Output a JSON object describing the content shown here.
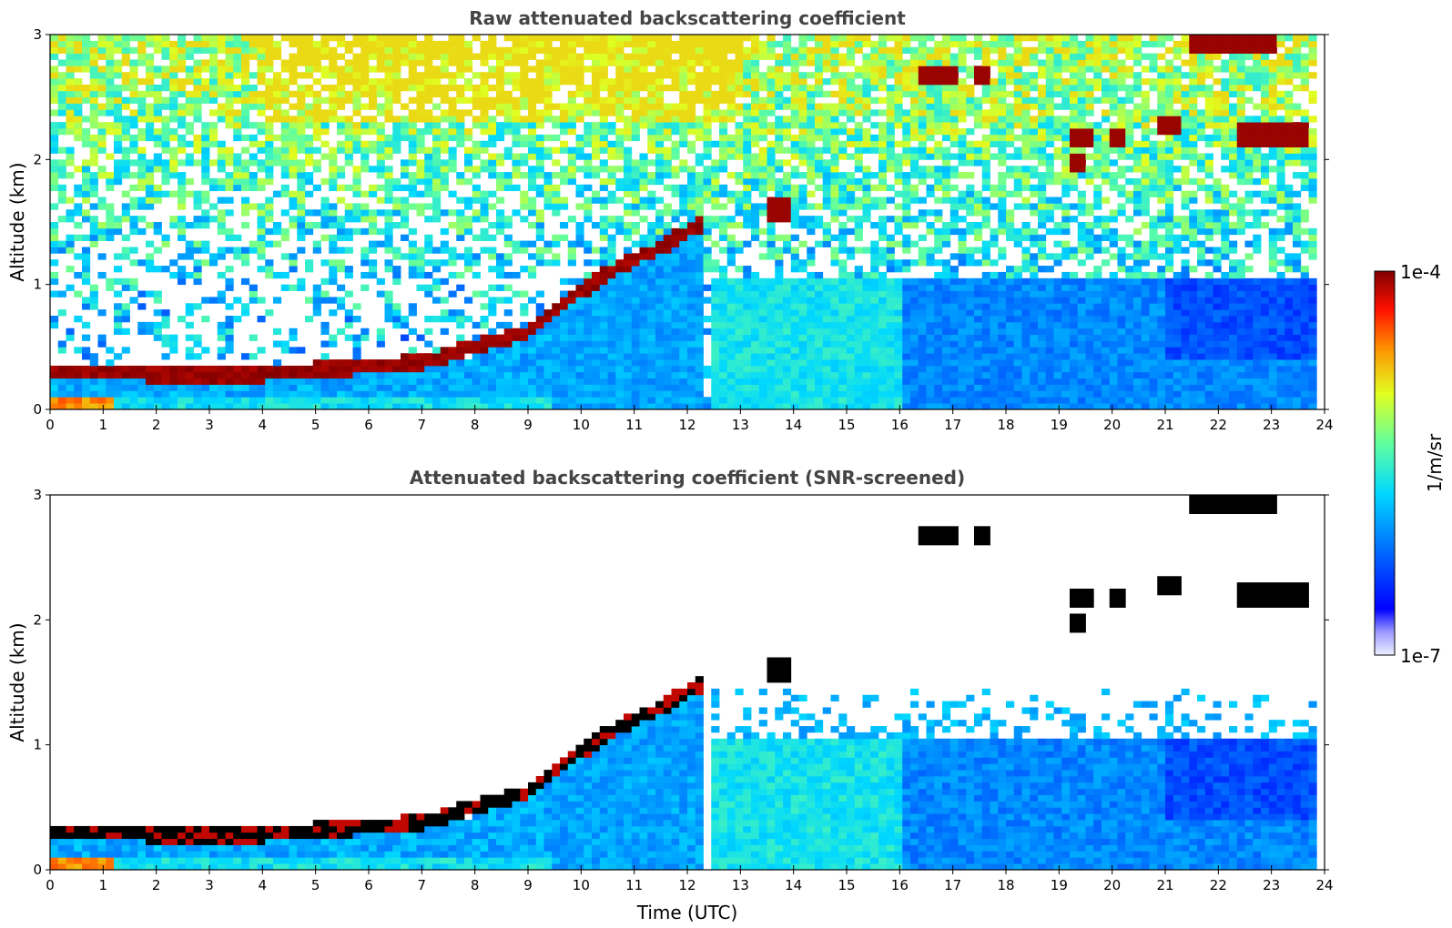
{
  "chart_data": [
    {
      "type": "heatmap",
      "title": "Raw attenuated backscattering coefficient",
      "xlabel": "",
      "ylabel": "Altitude (km)",
      "xlim": [
        0,
        24
      ],
      "ylim": [
        0,
        3
      ],
      "xticks": [
        "0",
        "1",
        "2",
        "3",
        "4",
        "5",
        "6",
        "7",
        "8",
        "9",
        "10",
        "11",
        "12",
        "13",
        "14",
        "15",
        "16",
        "17",
        "18",
        "19",
        "20",
        "21",
        "22",
        "23",
        "24"
      ],
      "yticks": [
        "0",
        "1",
        "2",
        "3"
      ],
      "screened": false
    },
    {
      "type": "heatmap",
      "title": "Attenuated backscattering coefficient (SNR-screened)",
      "xlabel": "Time (UTC)",
      "ylabel": "Altitude (km)",
      "xlim": [
        0,
        24
      ],
      "ylim": [
        0,
        3
      ],
      "xticks": [
        "0",
        "1",
        "2",
        "3",
        "4",
        "5",
        "6",
        "7",
        "8",
        "9",
        "10",
        "11",
        "12",
        "13",
        "14",
        "15",
        "16",
        "17",
        "18",
        "19",
        "20",
        "21",
        "22",
        "23",
        "24"
      ],
      "yticks": [
        "0",
        "1",
        "2",
        "3"
      ],
      "screened": true
    }
  ],
  "colorbar": {
    "label": "1/m/sr",
    "max_label": "1e-4",
    "min_label": "1e-7",
    "scale": "log",
    "colormap": "jet"
  },
  "features": {
    "boundary_layer_top_km": [
      [
        0,
        0.3
      ],
      [
        1,
        0.3
      ],
      [
        2,
        0.28
      ],
      [
        3,
        0.27
      ],
      [
        4,
        0.28
      ],
      [
        5,
        0.32
      ],
      [
        6,
        0.34
      ],
      [
        7,
        0.38
      ],
      [
        8,
        0.5
      ],
      [
        9,
        0.62
      ],
      [
        9.7,
        0.85
      ],
      [
        10.5,
        1.1
      ],
      [
        11.5,
        1.3
      ],
      [
        12.3,
        1.5
      ]
    ],
    "clouds": [
      {
        "t": [
          16.3,
          17.1
        ],
        "z": [
          2.6,
          2.75
        ]
      },
      {
        "t": [
          17.4,
          17.7
        ],
        "z": [
          2.6,
          2.75
        ]
      },
      {
        "t": [
          19.2,
          19.7
        ],
        "z": [
          2.12,
          2.25
        ]
      },
      {
        "t": [
          19.2,
          19.5
        ],
        "z": [
          1.92,
          2.05
        ]
      },
      {
        "t": [
          19.9,
          20.3
        ],
        "z": [
          2.12,
          2.25
        ]
      },
      {
        "t": [
          20.8,
          21.3
        ],
        "z": [
          2.2,
          2.35
        ]
      },
      {
        "t": [
          21.4,
          23.1
        ],
        "z": [
          2.85,
          3.0
        ]
      },
      {
        "t": [
          22.3,
          23.7
        ],
        "z": [
          2.1,
          2.3
        ]
      },
      {
        "t": [
          13.5,
          14.0
        ],
        "z": [
          1.5,
          1.7
        ]
      }
    ],
    "max_time_h": 23.8
  }
}
